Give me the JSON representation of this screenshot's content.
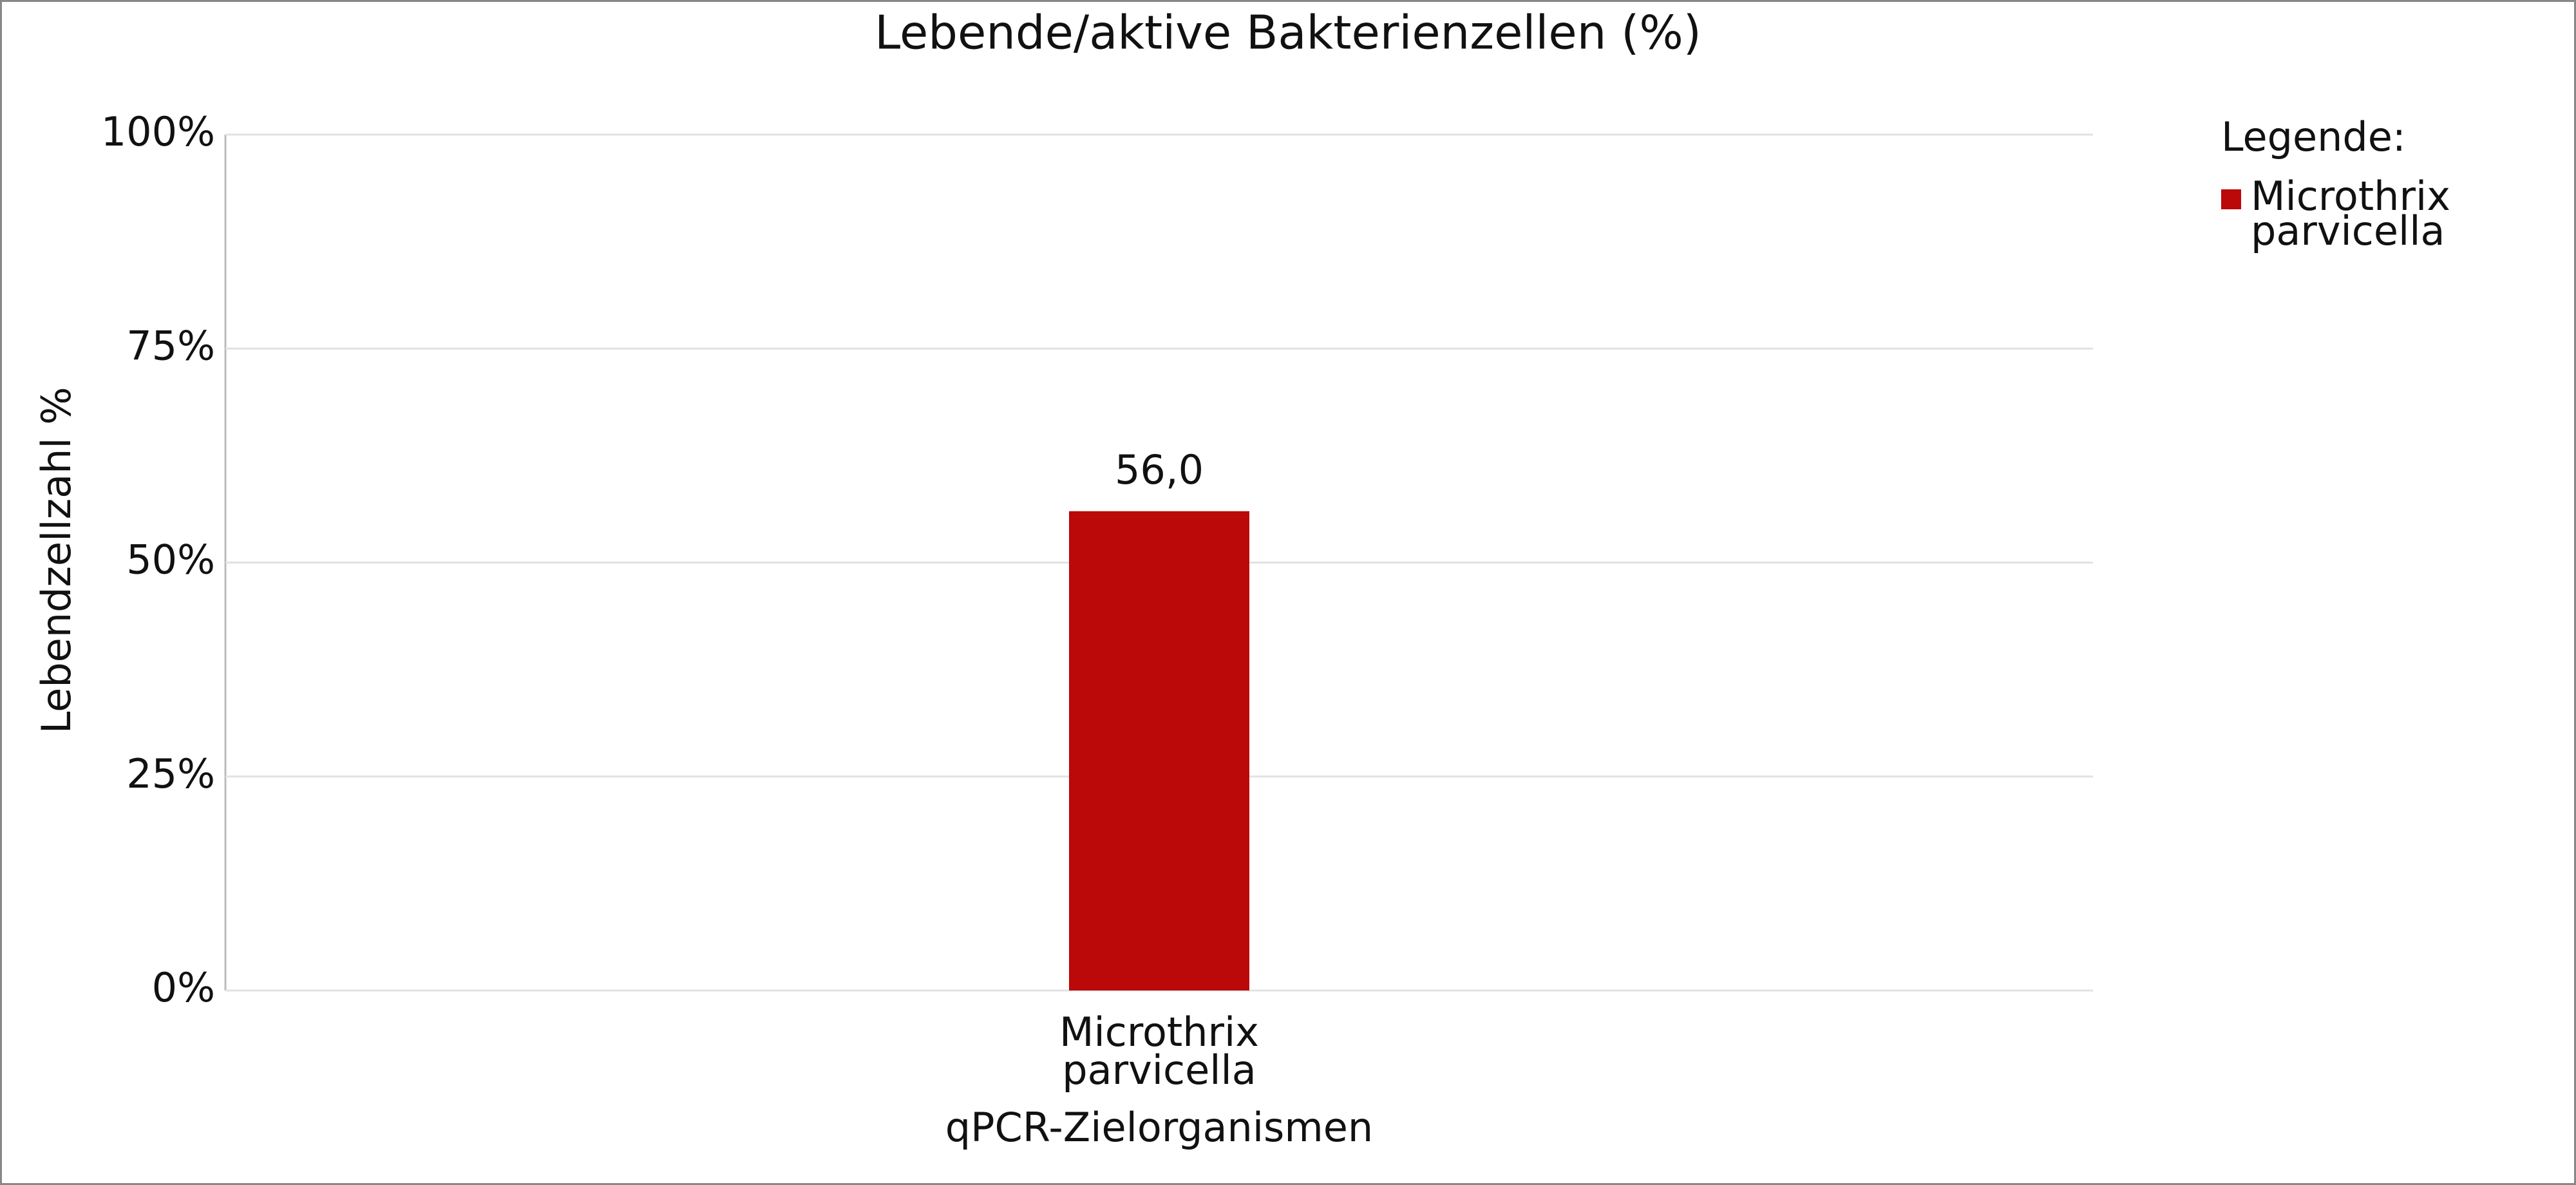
{
  "chart_data": {
    "type": "bar",
    "title": "Lebende/aktive Bakterienzellen (%)",
    "x_label": "qPCR-Zielorganismen",
    "y_label": "Lebendzellzahl %",
    "legend_title": "Legende:",
    "legend_position": "right",
    "categories": [
      "Microthrix parvicella"
    ],
    "series": [
      {
        "name": "Microthrix parvicella",
        "color": "#bb0808",
        "values": [
          56.0
        ],
        "value_labels": [
          "56,0"
        ]
      }
    ],
    "ylim": [
      0,
      100
    ],
    "yticks": [
      {
        "value": 0,
        "label": "0%"
      },
      {
        "value": 25,
        "label": "25%"
      },
      {
        "value": 50,
        "label": "50%"
      },
      {
        "value": 75,
        "label": "75%"
      },
      {
        "value": 100,
        "label": "100%"
      }
    ],
    "grid": true
  }
}
